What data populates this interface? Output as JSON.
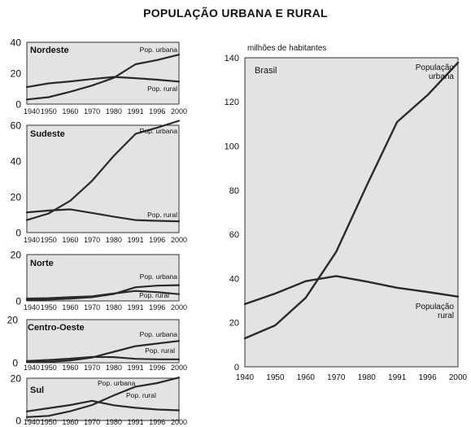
{
  "title": "POPULAÇÃO URBANA E RURAL",
  "colors": {
    "panel_bg": "#e3e3e3",
    "line": "#2a2a2a",
    "frame": "#333333"
  },
  "chart_data": [
    {
      "type": "line",
      "region": "Nordeste",
      "label_urban": "Pop. urbana",
      "label_rural": "Pop. rural",
      "x": [
        "1940",
        "1950",
        "1960",
        "1970",
        "1980",
        "1991",
        "1996",
        "2000"
      ],
      "ylim": [
        0,
        40
      ],
      "yticks": [
        "0",
        "20",
        "40"
      ],
      "series": [
        {
          "name": "Pop. urbana",
          "values": [
            3,
            4.5,
            8,
            12,
            17,
            25.8,
            28.5,
            32
          ]
        },
        {
          "name": "Pop. rural",
          "values": [
            11,
            13.4,
            14.7,
            16.2,
            17.6,
            16.8,
            15.8,
            14.6
          ]
        }
      ]
    },
    {
      "type": "line",
      "region": "Sudeste",
      "label_urban": "Pop. urbana",
      "label_rural": "Pop. rural",
      "x": [
        "1940",
        "1950",
        "1960",
        "1970",
        "1980",
        "1991",
        "1996",
        "2000"
      ],
      "ylim": [
        0,
        60
      ],
      "yticks": [
        "0",
        "20",
        "40",
        "60"
      ],
      "series": [
        {
          "name": "Pop. urbana",
          "values": [
            7,
            10.7,
            17.8,
            28.9,
            42.9,
            55.2,
            58.7,
            62.5
          ]
        },
        {
          "name": "Pop. rural",
          "values": [
            11.3,
            12.3,
            13,
            11,
            8.9,
            7,
            6.6,
            6.3
          ]
        }
      ]
    },
    {
      "type": "line",
      "region": "Norte",
      "label_urban": "Pop. urbana",
      "label_rural": "Pop. rural",
      "x": [
        "1940",
        "1950",
        "1960",
        "1970",
        "1980",
        "1991",
        "1996",
        "2000"
      ],
      "ylim": [
        0,
        20
      ],
      "yticks": [
        "0",
        "20"
      ],
      "series": [
        {
          "name": "Pop. urbana",
          "values": [
            0.4,
            0.6,
            1,
            1.6,
            3,
            5.9,
            6.6,
            6.8
          ]
        },
        {
          "name": "Pop. rural",
          "values": [
            1,
            1.2,
            1.6,
            2,
            3.2,
            4.3,
            3.8,
            2.9
          ]
        }
      ]
    },
    {
      "type": "line",
      "region": "Centro-Oeste",
      "label_urban": "Pop. urbana",
      "label_rural": "Pop. rural",
      "x": [
        "1940",
        "1950",
        "1960",
        "1970",
        "1980",
        "1991",
        "1996",
        "2000"
      ],
      "ylim": [
        0,
        20
      ],
      "yticks": [
        "0",
        "20"
      ],
      "series": [
        {
          "name": "Pop. urbana",
          "values": [
            0.3,
            0.4,
            1.1,
            2.4,
            5.1,
            7.7,
            8.9,
            10.1
          ]
        },
        {
          "name": "Pop. rural",
          "values": [
            0.8,
            1.3,
            1.9,
            2.7,
            2.6,
            1.8,
            1.6,
            1.6
          ]
        }
      ]
    },
    {
      "type": "line",
      "region": "Sul",
      "label_urban": "Pop. urbana",
      "label_rural": "Pop. rural",
      "x": [
        "1940",
        "1950",
        "1960",
        "1970",
        "1980",
        "1991",
        "1996",
        "2000"
      ],
      "ylim": [
        0,
        20
      ],
      "yticks": [
        "0",
        "20"
      ],
      "series": [
        {
          "name": "Pop. urbana",
          "values": [
            1.6,
            2.2,
            4.4,
            7.3,
            11.9,
            16,
            17.7,
            20.3
          ]
        },
        {
          "name": "Pop. rural",
          "values": [
            4.3,
            5.8,
            7.3,
            9.3,
            7.2,
            6,
            5.2,
            4.8
          ]
        }
      ]
    },
    {
      "type": "line",
      "region": "Brasil",
      "ylabel": "milhões de habitantes",
      "label_urban": "População\nurbana",
      "label_rural": "População\nrural",
      "x": [
        "1940",
        "1950",
        "1960",
        "1970",
        "1980",
        "1991",
        "1996",
        "2000"
      ],
      "ylim": [
        0,
        140
      ],
      "yticks": [
        "0",
        "20",
        "40",
        "60",
        "80",
        "100",
        "120",
        "140"
      ],
      "series": [
        {
          "name": "População urbana",
          "values": [
            12.9,
            18.8,
            31.3,
            52.1,
            82,
            110.9,
            123.1,
            137.8
          ]
        },
        {
          "name": "População rural",
          "values": [
            28.4,
            33.2,
            38.8,
            41.1,
            38.6,
            35.8,
            33.9,
            31.8
          ]
        }
      ]
    }
  ]
}
